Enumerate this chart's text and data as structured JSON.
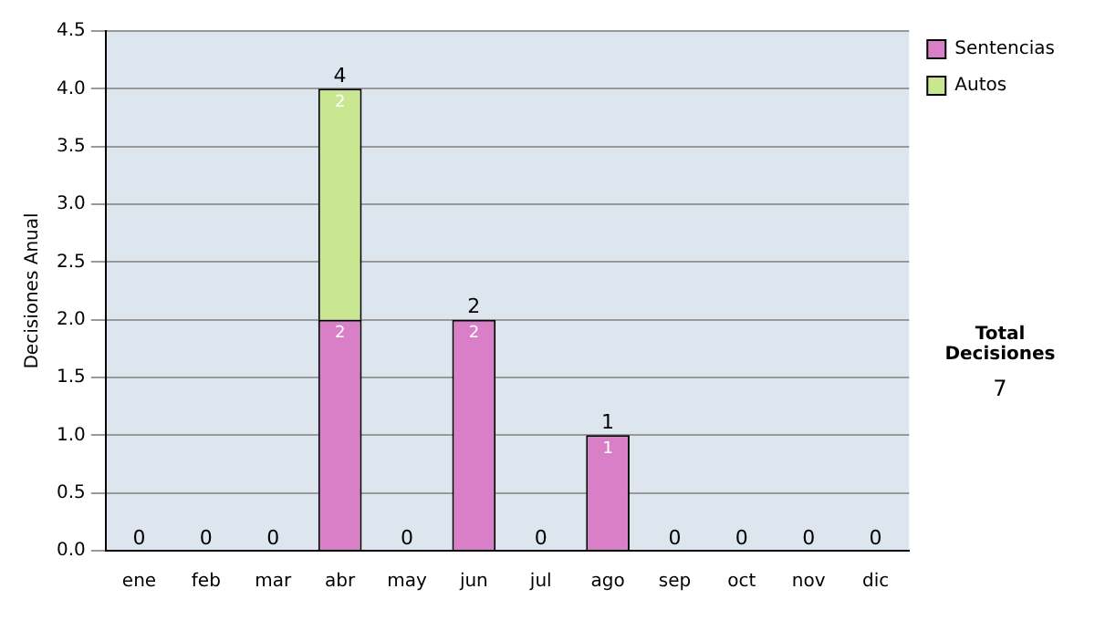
{
  "chart_data": {
    "type": "bar",
    "stacked": true,
    "ylabel": "Decisiones Anual",
    "categories": [
      "ene",
      "feb",
      "mar",
      "abr",
      "may",
      "jun",
      "jul",
      "ago",
      "sep",
      "oct",
      "nov",
      "dic"
    ],
    "series": [
      {
        "name": "Sentencias",
        "color": "#d97fc8",
        "values": [
          0,
          0,
          0,
          2,
          0,
          2,
          0,
          1,
          0,
          0,
          0,
          0
        ],
        "value_labels": [
          null,
          null,
          null,
          "2",
          null,
          "2",
          null,
          "1",
          null,
          null,
          null,
          null
        ]
      },
      {
        "name": "Autos",
        "color": "#c9e690",
        "values": [
          0,
          0,
          0,
          2,
          0,
          0,
          0,
          0,
          0,
          0,
          0,
          0
        ],
        "value_labels": [
          null,
          null,
          null,
          "2",
          null,
          null,
          null,
          null,
          null,
          null,
          null,
          null
        ]
      }
    ],
    "totals": [
      "0",
      "0",
      "0",
      "4",
      "0",
      "2",
      "0",
      "1",
      "0",
      "0",
      "0",
      "0"
    ],
    "ylim": [
      0,
      4.5
    ],
    "yticks": [
      {
        "value": 0,
        "label": "0.0"
      },
      {
        "value": 0.5,
        "label": "0.5"
      },
      {
        "value": 1,
        "label": "1.0"
      },
      {
        "value": 1.5,
        "label": "1.5"
      },
      {
        "value": 2,
        "label": "2.0"
      },
      {
        "value": 2.5,
        "label": "2.5"
      },
      {
        "value": 3,
        "label": "3.0"
      },
      {
        "value": 3.5,
        "label": "3.5"
      },
      {
        "value": 4,
        "label": "4.0"
      },
      {
        "value": 4.5,
        "label": "4.5"
      }
    ],
    "grid": "y",
    "legend": "right",
    "annotations": [
      "Total Decisiones",
      "7"
    ]
  }
}
